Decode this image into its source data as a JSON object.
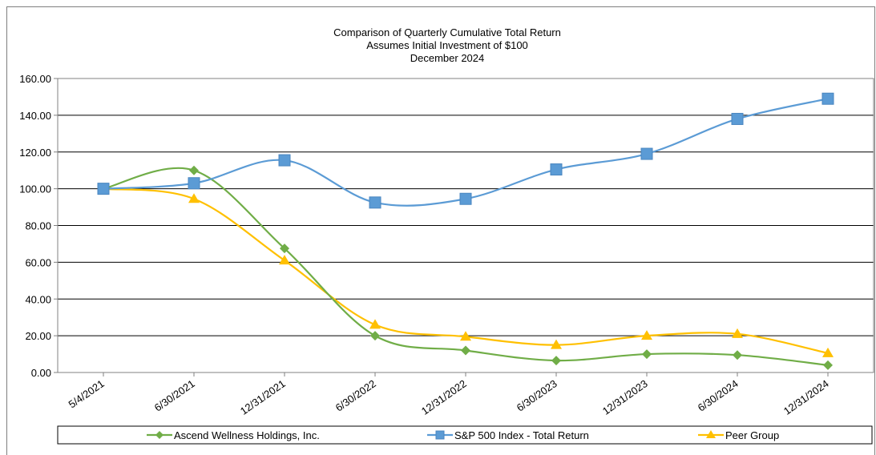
{
  "chart_data": {
    "type": "line",
    "title": [
      "Comparison of Quarterly Cumulative Total Return",
      "Assumes Initial Investment of $100",
      "December 2024"
    ],
    "xlabel": "",
    "ylabel": "",
    "ylim": [
      0,
      160
    ],
    "yticks": [
      "0.00",
      "20.00",
      "40.00",
      "60.00",
      "80.00",
      "100.00",
      "120.00",
      "140.00",
      "160.00"
    ],
    "categories": [
      "5/4/2021",
      "6/30/2021",
      "12/31/2021",
      "6/30/2022",
      "12/31/2022",
      "6/30/2023",
      "12/31/2023",
      "6/30/2024",
      "12/31/2024"
    ],
    "grid": "horizontal",
    "legend_position": "bottom",
    "series": [
      {
        "name": "Ascend Wellness Holdings, Inc.",
        "color": "#70AD47",
        "marker": "diamond",
        "values": [
          100.0,
          110.0,
          67.5,
          20.0,
          12.0,
          6.5,
          10.0,
          9.5,
          4.0
        ]
      },
      {
        "name": "S&P 500 Index - Total Return",
        "color": "#5B9BD5",
        "marker": "square",
        "values": [
          100.0,
          103.0,
          115.5,
          92.5,
          94.5,
          110.5,
          119.0,
          138.0,
          149.0
        ]
      },
      {
        "name": "Peer Group",
        "color": "#FFC000",
        "marker": "triangle",
        "values": [
          100.0,
          94.5,
          61.0,
          26.0,
          19.5,
          15.0,
          20.0,
          21.0,
          10.5
        ]
      }
    ]
  }
}
